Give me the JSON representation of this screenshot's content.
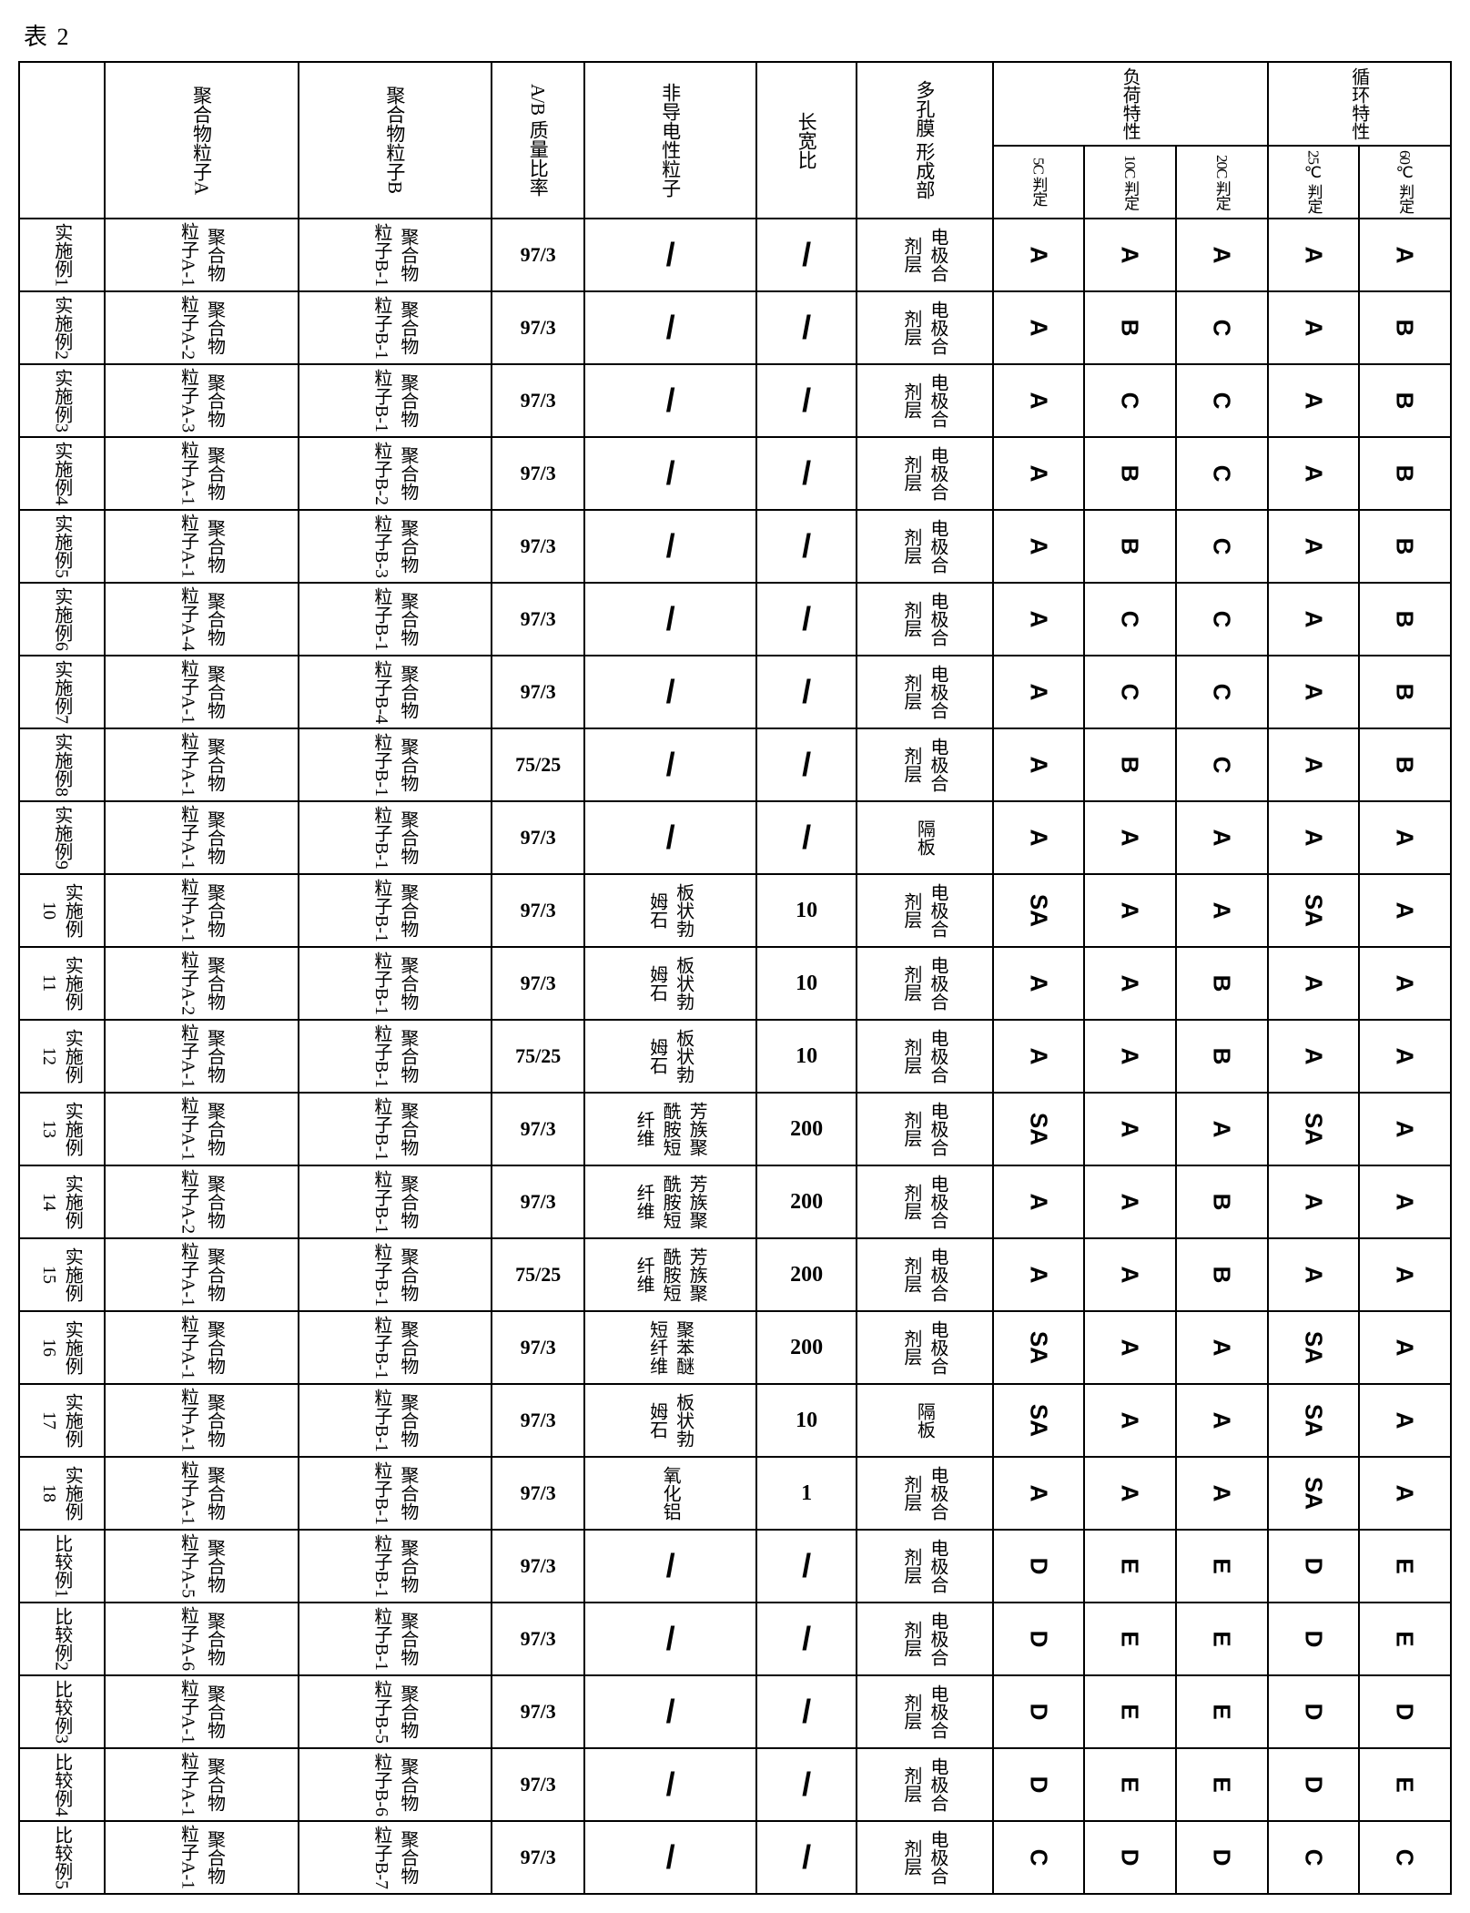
{
  "caption": "表 2",
  "header": {
    "blank": "",
    "colA": "聚合物粒子A",
    "colB": "聚合物粒子B",
    "ratio": "A/B\n质量比率",
    "nonCond": "非导电性粒子",
    "aspect": "长宽比",
    "location": "多孔膜\n形成部",
    "grpLoad": "负荷特性",
    "grpCycle": "循环特性",
    "sub5C": "5C\n判定",
    "sub10C": "10C\n判定",
    "sub20C": "20C\n判定",
    "sub25C": "25℃\n判定",
    "sub60C": "60℃\n判定"
  },
  "loc": {
    "mix": "电极合剂层",
    "sep": "隔板"
  },
  "np": {
    "plate": "板状勃姆石",
    "aramid": "芳族聚酰胺短纤维",
    "pbo": "聚苯醚短纤维",
    "alumina": "氧化铝"
  },
  "pa": {
    "a1": "聚合物粒子A-1",
    "a2": "聚合物粒子A-2",
    "a3": "聚合物粒子A-3",
    "a4": "聚合物粒子A-4",
    "a5": "聚合物粒子A-5",
    "a6": "聚合物粒子A-6"
  },
  "pb": {
    "b1": "聚合物粒子B-1",
    "b2": "聚合物粒子B-2",
    "b3": "聚合物粒子B-3",
    "b4": "聚合物粒子B-4",
    "b5": "聚合物粒子B-5",
    "b6": "聚合物粒子B-6",
    "b7": "聚合物粒子B-7"
  },
  "rows": {
    "r1": {
      "l": "实施例1",
      "pa": "a1",
      "pb": "b1",
      "r": "97/3",
      "np": "/",
      "asp": "/",
      "lc": "mix",
      "j": [
        "A",
        "A",
        "A",
        "A",
        "A"
      ]
    },
    "r2": {
      "l": "实施例2",
      "pa": "a2",
      "pb": "b1",
      "r": "97/3",
      "np": "/",
      "asp": "/",
      "lc": "mix",
      "j": [
        "A",
        "B",
        "C",
        "A",
        "B"
      ]
    },
    "r3": {
      "l": "实施例3",
      "pa": "a3",
      "pb": "b1",
      "r": "97/3",
      "np": "/",
      "asp": "/",
      "lc": "mix",
      "j": [
        "A",
        "C",
        "C",
        "A",
        "B"
      ]
    },
    "r4": {
      "l": "实施例4",
      "pa": "a1",
      "pb": "b2",
      "r": "97/3",
      "np": "/",
      "asp": "/",
      "lc": "mix",
      "j": [
        "A",
        "B",
        "C",
        "A",
        "B"
      ]
    },
    "r5": {
      "l": "实施例5",
      "pa": "a1",
      "pb": "b3",
      "r": "97/3",
      "np": "/",
      "asp": "/",
      "lc": "mix",
      "j": [
        "A",
        "B",
        "C",
        "A",
        "B"
      ]
    },
    "r6": {
      "l": "实施例6",
      "pa": "a4",
      "pb": "b1",
      "r": "97/3",
      "np": "/",
      "asp": "/",
      "lc": "mix",
      "j": [
        "A",
        "C",
        "C",
        "A",
        "B"
      ]
    },
    "r7": {
      "l": "实施例7",
      "pa": "a1",
      "pb": "b4",
      "r": "97/3",
      "np": "/",
      "asp": "/",
      "lc": "mix",
      "j": [
        "A",
        "C",
        "C",
        "A",
        "B"
      ]
    },
    "r8": {
      "l": "实施例8",
      "pa": "a1",
      "pb": "b1",
      "r": "75/25",
      "np": "/",
      "asp": "/",
      "lc": "mix",
      "j": [
        "A",
        "B",
        "C",
        "A",
        "B"
      ]
    },
    "r9": {
      "l": "实施例9",
      "pa": "a1",
      "pb": "b1",
      "r": "97/3",
      "np": "/",
      "asp": "/",
      "lc": "sep",
      "j": [
        "A",
        "A",
        "A",
        "A",
        "A"
      ]
    },
    "r10": {
      "l": "实施例10",
      "pa": "a1",
      "pb": "b1",
      "r": "97/3",
      "np": "plate",
      "asp": "10",
      "lc": "mix",
      "j": [
        "SA",
        "A",
        "A",
        "SA",
        "A"
      ]
    },
    "r11": {
      "l": "实施例11",
      "pa": "a2",
      "pb": "b1",
      "r": "97/3",
      "np": "plate",
      "asp": "10",
      "lc": "mix",
      "j": [
        "A",
        "A",
        "B",
        "A",
        "A"
      ]
    },
    "r12": {
      "l": "实施例12",
      "pa": "a1",
      "pb": "b1",
      "r": "75/25",
      "np": "plate",
      "asp": "10",
      "lc": "mix",
      "j": [
        "A",
        "A",
        "B",
        "A",
        "A"
      ]
    },
    "r13": {
      "l": "实施例13",
      "pa": "a1",
      "pb": "b1",
      "r": "97/3",
      "np": "aramid",
      "asp": "200",
      "lc": "mix",
      "j": [
        "SA",
        "A",
        "A",
        "SA",
        "A"
      ]
    },
    "r14": {
      "l": "实施例14",
      "pa": "a2",
      "pb": "b1",
      "r": "97/3",
      "np": "aramid",
      "asp": "200",
      "lc": "mix",
      "j": [
        "A",
        "A",
        "B",
        "A",
        "A"
      ]
    },
    "r15": {
      "l": "实施例15",
      "pa": "a1",
      "pb": "b1",
      "r": "75/25",
      "np": "aramid",
      "asp": "200",
      "lc": "mix",
      "j": [
        "A",
        "A",
        "B",
        "A",
        "A"
      ]
    },
    "r16": {
      "l": "实施例16",
      "pa": "a1",
      "pb": "b1",
      "r": "97/3",
      "np": "pbo",
      "asp": "200",
      "lc": "mix",
      "j": [
        "SA",
        "A",
        "A",
        "SA",
        "A"
      ]
    },
    "r17": {
      "l": "实施例17",
      "pa": "a1",
      "pb": "b1",
      "r": "97/3",
      "np": "plate",
      "asp": "10",
      "lc": "sep",
      "j": [
        "SA",
        "A",
        "A",
        "SA",
        "A"
      ]
    },
    "r18": {
      "l": "实施例18",
      "pa": "a1",
      "pb": "b1",
      "r": "97/3",
      "np": "alumina",
      "asp": "1",
      "lc": "mix",
      "j": [
        "A",
        "A",
        "A",
        "SA",
        "A"
      ]
    },
    "r19": {
      "l": "比较例1",
      "pa": "a5",
      "pb": "b1",
      "r": "97/3",
      "np": "/",
      "asp": "/",
      "lc": "mix",
      "j": [
        "D",
        "E",
        "E",
        "D",
        "E"
      ]
    },
    "r20": {
      "l": "比较例2",
      "pa": "a6",
      "pb": "b1",
      "r": "97/3",
      "np": "/",
      "asp": "/",
      "lc": "mix",
      "j": [
        "D",
        "E",
        "E",
        "D",
        "E"
      ]
    },
    "r21": {
      "l": "比较例3",
      "pa": "a1",
      "pb": "b5",
      "r": "97/3",
      "np": "/",
      "asp": "/",
      "lc": "mix",
      "j": [
        "D",
        "E",
        "E",
        "D",
        "D"
      ]
    },
    "r22": {
      "l": "比较例4",
      "pa": "a1",
      "pb": "b6",
      "r": "97/3",
      "np": "/",
      "asp": "/",
      "lc": "mix",
      "j": [
        "D",
        "E",
        "E",
        "D",
        "E"
      ]
    },
    "r23": {
      "l": "比较例5",
      "pa": "a1",
      "pb": "b7",
      "r": "97/3",
      "np": "/",
      "asp": "/",
      "lc": "mix",
      "j": [
        "C",
        "D",
        "D",
        "C",
        "C"
      ]
    }
  },
  "rowOrder": [
    "r1",
    "r2",
    "r3",
    "r4",
    "r5",
    "r6",
    "r7",
    "r8",
    "r9",
    "r10",
    "r11",
    "r12",
    "r13",
    "r14",
    "r15",
    "r16",
    "r17",
    "r18",
    "r19",
    "r20",
    "r21",
    "r22",
    "r23"
  ]
}
